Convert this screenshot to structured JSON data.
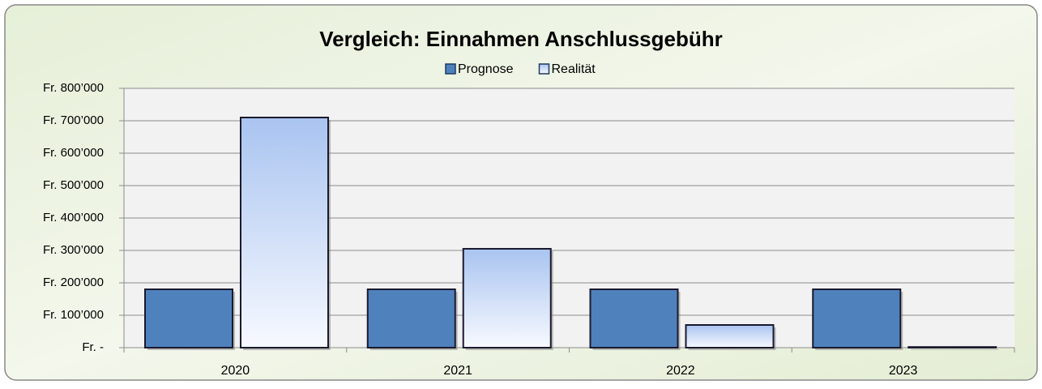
{
  "chart_data": {
    "type": "bar",
    "title": "Vergleich: Einnahmen Anschlussgebühr",
    "categories": [
      "2020",
      "2021",
      "2022",
      "2023"
    ],
    "series": [
      {
        "name": "Prognose",
        "color": "#4f81bd",
        "values": [
          180000,
          180000,
          180000,
          180000
        ]
      },
      {
        "name": "Realität",
        "color": "#a9c4f0",
        "values": [
          710000,
          305000,
          70000,
          2000
        ]
      }
    ],
    "ylim": [
      0,
      800000
    ],
    "yticks": [
      {
        "value": 0,
        "label": "Fr. -"
      },
      {
        "value": 100000,
        "label": "Fr. 100’000"
      },
      {
        "value": 200000,
        "label": "Fr. 200’000"
      },
      {
        "value": 300000,
        "label": "Fr. 300’000"
      },
      {
        "value": 400000,
        "label": "Fr. 400’000"
      },
      {
        "value": 500000,
        "label": "Fr. 500’000"
      },
      {
        "value": 600000,
        "label": "Fr. 600’000"
      },
      {
        "value": 700000,
        "label": "Fr. 700’000"
      },
      {
        "value": 800000,
        "label": "Fr. 800’000"
      }
    ],
    "grid": true,
    "legend": "top"
  }
}
